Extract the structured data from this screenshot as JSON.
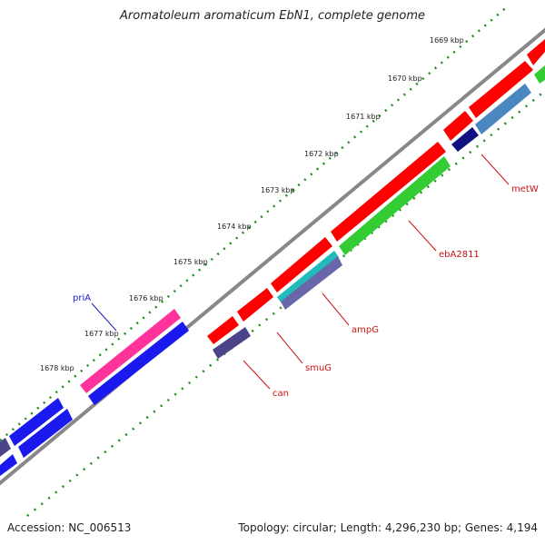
{
  "title": "Aromatoleum aromaticum EbN1, complete genome",
  "accession": "Accession: NC_006513",
  "summary": "Topology: circular; Length: 4,296,230 bp; Genes: 4,194",
  "ticks": [
    "1669 kbp",
    "1670 kbp",
    "1671 kbp",
    "1672 kbp",
    "1673 kbp",
    "1674 kbp",
    "1675 kbp",
    "1676 kbp",
    "1677 kbp",
    "1678 kbp"
  ],
  "gene_labels": [
    {
      "name": "priA",
      "color": "#1a1acc"
    },
    {
      "name": "metW",
      "color": "#cc1111"
    },
    {
      "name": "ebA2811",
      "color": "#cc1111"
    },
    {
      "name": "ampG",
      "color": "#cc1111"
    },
    {
      "name": "smuG",
      "color": "#cc1111"
    },
    {
      "name": "can",
      "color": "#cc1111"
    }
  ],
  "colors": {
    "backbone": "#888888",
    "tick": "#1e8c1e",
    "red": "#ff0000",
    "blue": "#1a1aee",
    "pink": "#ff3399",
    "green": "#33cc33",
    "steel": "#4a86c0",
    "purple": "#4a4488",
    "teal": "#22bbbb",
    "navy": "#101080"
  }
}
